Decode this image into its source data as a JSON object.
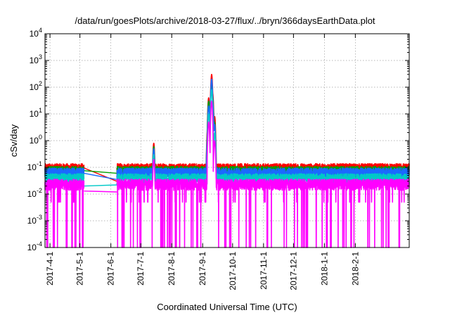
{
  "chart_data": {
    "type": "line",
    "title": "/data/run/goesPlots/archive/2018-03-27/flux/../bryn/366daysEarthData.plot",
    "xlabel": "Coordinated Universal Time (UTC)",
    "ylabel": "cSv/day",
    "x_scale": "time",
    "y_scale": "log",
    "xlim": [
      "2017-03-27",
      "2018-03-27"
    ],
    "ylim": [
      0.0001,
      10000
    ],
    "x_ticks": [
      "2017-4-1",
      "2017-5-1",
      "2017-6-1",
      "2017-7-1",
      "2017-8-1",
      "2017-9-1",
      "2017-10-1",
      "2017-11-1",
      "2017-12-1",
      "2018-1-1",
      "2018-2-1"
    ],
    "y_ticks": [
      {
        "value": 0.0001,
        "base": "10",
        "exp": "-4"
      },
      {
        "value": 0.001,
        "base": "10",
        "exp": "-3"
      },
      {
        "value": 0.01,
        "base": "10",
        "exp": "-2"
      },
      {
        "value": 0.1,
        "base": "10",
        "exp": "-1"
      },
      {
        "value": 1,
        "base": "10",
        "exp": "0"
      },
      {
        "value": 10,
        "base": "10",
        "exp": "1"
      },
      {
        "value": 100,
        "base": "10",
        "exp": "2"
      },
      {
        "value": 1000,
        "base": "10",
        "exp": "3"
      },
      {
        "value": 10000,
        "base": "10",
        "exp": "4"
      }
    ],
    "grid": true,
    "data_gap": [
      "2017-05-05",
      "2017-06-07"
    ],
    "series": [
      {
        "color": "#ff0000",
        "baseline": 0.095,
        "points": [
          [
            "2017-05-05",
            0.095
          ],
          [
            "2017-06-07",
            0.03
          ]
        ],
        "peaks": [
          [
            "2017-07-14",
            0.8
          ],
          [
            "2017-09-06",
            3
          ],
          [
            "2017-09-07",
            40
          ],
          [
            "2017-09-10",
            300
          ],
          [
            "2017-09-11",
            60
          ],
          [
            "2017-09-13",
            8
          ]
        ]
      },
      {
        "color": "#00a000",
        "baseline": 0.075,
        "points": [
          [
            "2017-05-05",
            0.075
          ],
          [
            "2017-06-07",
            0.06
          ]
        ],
        "peaks": [
          [
            "2017-07-14",
            0.6
          ],
          [
            "2017-09-06",
            2
          ],
          [
            "2017-09-07",
            30
          ],
          [
            "2017-09-10",
            150
          ],
          [
            "2017-09-11",
            40
          ],
          [
            "2017-09-13",
            5
          ]
        ]
      },
      {
        "color": "#1a6aff",
        "baseline": 0.065,
        "points": [
          [
            "2017-05-05",
            0.06
          ],
          [
            "2017-06-07",
            0.035
          ]
        ],
        "peaks": [
          [
            "2017-07-14",
            0.5
          ],
          [
            "2017-09-06",
            1.5
          ],
          [
            "2017-09-07",
            20
          ],
          [
            "2017-09-10",
            200
          ],
          [
            "2017-09-11",
            30
          ],
          [
            "2017-09-13",
            4
          ]
        ]
      },
      {
        "color": "#00c8c8",
        "baseline": 0.04,
        "points": [
          [
            "2017-05-05",
            0.02
          ],
          [
            "2017-06-07",
            0.022
          ]
        ],
        "peaks": [
          [
            "2017-07-14",
            0.3
          ],
          [
            "2017-09-07",
            10
          ],
          [
            "2017-09-10",
            80
          ],
          [
            "2017-09-13",
            2
          ]
        ]
      },
      {
        "color": "#ff00ff",
        "baseline": 0.025,
        "points": [
          [
            "2017-05-05",
            0.013
          ],
          [
            "2017-06-07",
            0.012
          ]
        ],
        "peaks": [
          [
            "2017-07-14",
            0.2
          ],
          [
            "2017-09-07",
            5
          ],
          [
            "2017-09-10",
            30
          ],
          [
            "2017-09-13",
            1
          ]
        ]
      }
    ]
  }
}
